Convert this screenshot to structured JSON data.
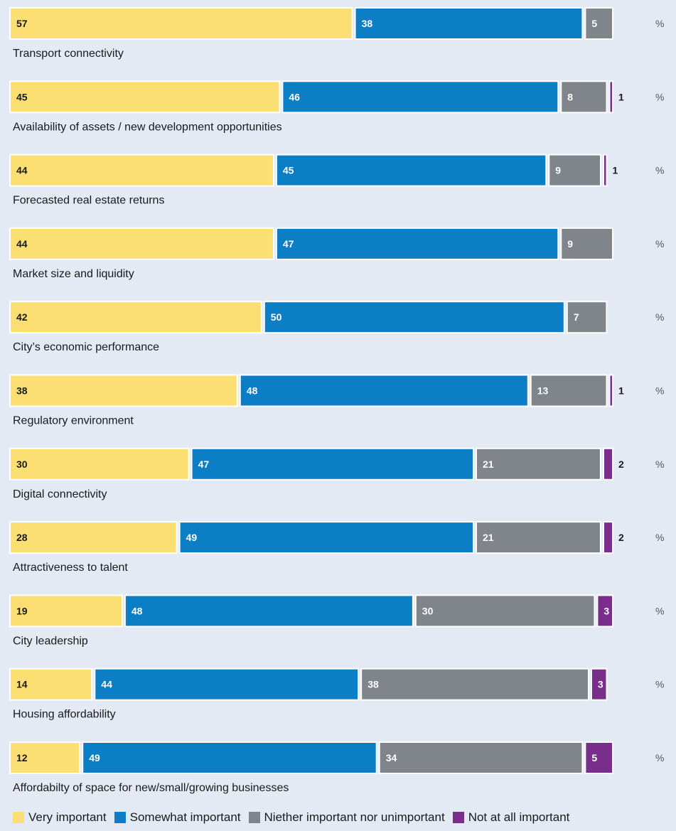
{
  "chart_data": {
    "type": "bar",
    "orientation": "horizontal-stacked",
    "unit": "%",
    "categories": [
      "Transport connectivity",
      "Availability of assets / new development opportunities",
      "Forecasted real estate returns",
      "Market size and liquidity",
      "City’s economic performance",
      "Regulatory environment",
      "Digital connectivity",
      "Attractiveness to talent",
      "City leadership",
      "Housing affordability",
      "Affordabilty of space for new/small/growing businesses"
    ],
    "series": [
      {
        "name": "Very important",
        "color": "#fcdf73",
        "values": [
          57,
          45,
          44,
          44,
          42,
          38,
          30,
          28,
          19,
          14,
          12
        ]
      },
      {
        "name": "Somewhat important",
        "color": "#0b7ec5",
        "values": [
          38,
          46,
          45,
          47,
          50,
          48,
          47,
          49,
          48,
          44,
          49
        ]
      },
      {
        "name": "Niether important nor unimportant",
        "color": "#7f858b",
        "values": [
          5,
          8,
          9,
          9,
          7,
          13,
          21,
          21,
          30,
          38,
          34
        ]
      },
      {
        "name": "Not at all important",
        "color": "#7a2e8c",
        "values": [
          0,
          1,
          1,
          0,
          0,
          1,
          2,
          2,
          3,
          3,
          5
        ]
      }
    ],
    "xlim": [
      0,
      100
    ],
    "legend_position": "bottom"
  }
}
